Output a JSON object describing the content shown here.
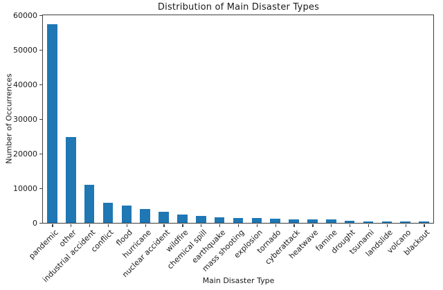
{
  "chart_data": {
    "type": "bar",
    "title": "Distribution of Main Disaster Types",
    "xlabel": "Main Disaster Type",
    "ylabel": "Number of Occurrences",
    "categories": [
      "pandemic",
      "other",
      "industrial accident",
      "conflict",
      "flood",
      "hurricane",
      "nuclear accident",
      "wildfire",
      "chemical spill",
      "earthquake",
      "mass shooting",
      "explosion",
      "tornado",
      "cyberattack",
      "heatwave",
      "famine",
      "drought",
      "tsunami",
      "landslide",
      "volcano",
      "blackout"
    ],
    "values": [
      57500,
      24800,
      11000,
      5900,
      5000,
      4100,
      3300,
      2500,
      2000,
      1700,
      1500,
      1350,
      1250,
      1050,
      1000,
      950,
      700,
      450,
      420,
      380,
      350
    ],
    "ylim": [
      0,
      60000
    ],
    "y_ticks": [
      0,
      10000,
      20000,
      30000,
      40000,
      50000,
      60000
    ],
    "bar_color": "#1f77b4",
    "spine_color": "#3d3d3d",
    "grid": false,
    "legend": "none",
    "x_tick_rotation_deg": 45
  }
}
